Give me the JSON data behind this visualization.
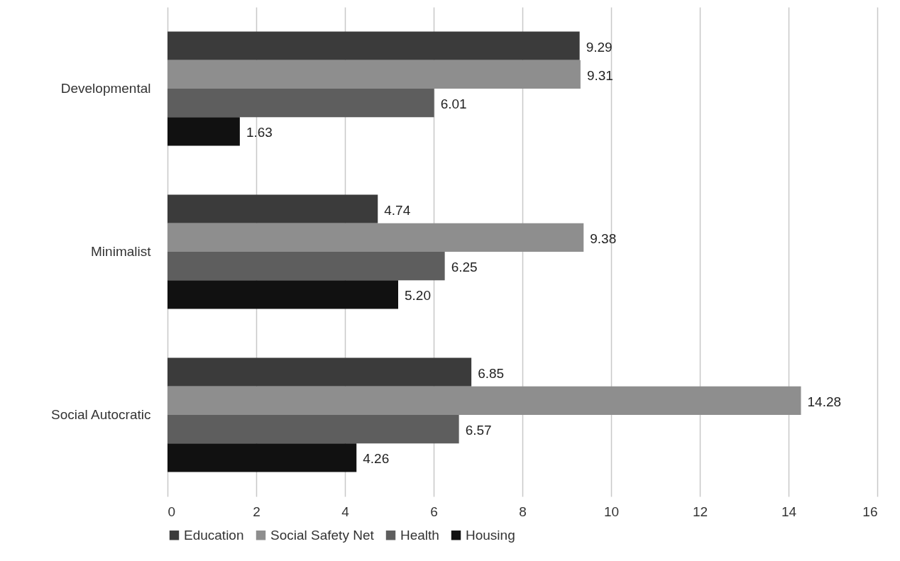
{
  "chart_data": {
    "type": "bar",
    "orientation": "horizontal",
    "categories": [
      "Developmental",
      "Minimalist",
      "Social Autocratic"
    ],
    "series": [
      {
        "name": "Education",
        "color": "#3b3b3b",
        "values": [
          9.29,
          4.74,
          6.85
        ],
        "value_labels": [
          "9.29",
          "4.74",
          "6.85"
        ]
      },
      {
        "name": "Social Safety Net",
        "color": "#8e8e8e",
        "values": [
          9.31,
          9.38,
          14.28
        ],
        "value_labels": [
          "9.31",
          "9.38",
          "14.28"
        ]
      },
      {
        "name": "Health",
        "color": "#5e5e5e",
        "values": [
          6.01,
          6.25,
          6.57
        ],
        "value_labels": [
          "6.01",
          "6.25",
          "6.57"
        ]
      },
      {
        "name": "Housing",
        "color": "#111111",
        "values": [
          1.63,
          5.2,
          4.26
        ],
        "value_labels": [
          "1.63",
          "5.20",
          "4.26"
        ]
      }
    ],
    "xlim": [
      0,
      16
    ],
    "xticks": [
      0,
      2,
      4,
      6,
      8,
      10,
      12,
      14,
      16
    ],
    "grid": "x",
    "legend": "bottom"
  }
}
